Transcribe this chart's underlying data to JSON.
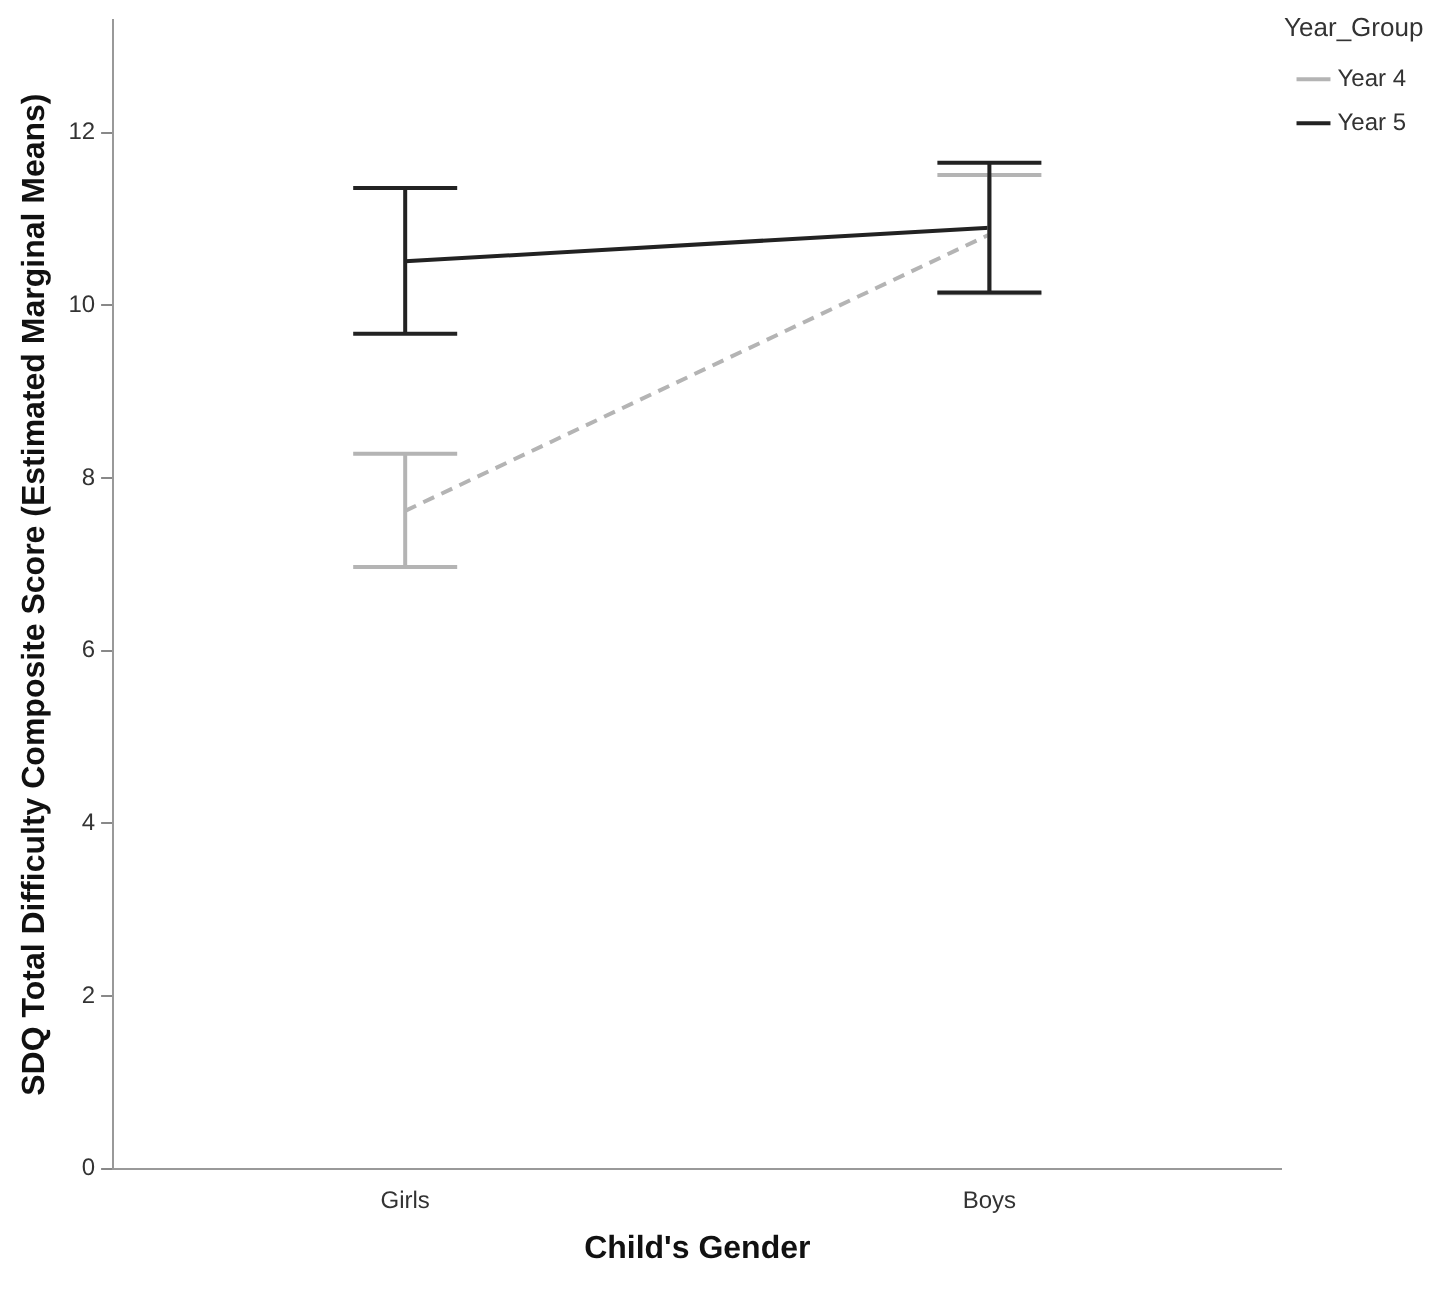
{
  "chart_data": {
    "type": "line",
    "xlabel": "Child's Gender",
    "ylabel": "SDQ Total Difficulty Composite Score (Estimated Marginal Means)",
    "legend_title": "Year_Group",
    "categories": [
      "Girls",
      "Boys"
    ],
    "series": [
      {
        "name": "Year 4",
        "color": "#b4b4b4",
        "line_style": "dashed",
        "values": [
          7.62,
          10.82
        ],
        "errors": [
          [
            6.97,
            8.28
          ],
          [
            10.14,
            11.51
          ]
        ]
      },
      {
        "name": "Year 5",
        "color": "#222222",
        "line_style": "solid",
        "values": [
          10.51,
          10.9
        ],
        "errors": [
          [
            9.67,
            11.36
          ],
          [
            10.15,
            11.65
          ]
        ]
      }
    ],
    "ylim": [
      0,
      13.3
    ],
    "yticks": [
      0,
      2,
      4,
      6,
      8,
      10,
      12
    ],
    "grid": false,
    "legend": "top right",
    "marker": "none"
  }
}
